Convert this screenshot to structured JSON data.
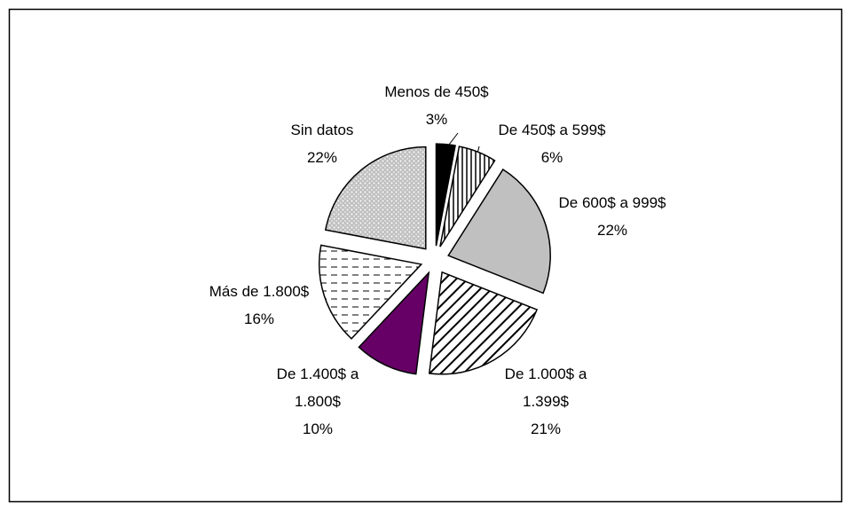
{
  "chart_data": {
    "type": "pie",
    "categories": [
      "Menos de 450$",
      "De 450$ a 599$",
      "De 600$ a 999$",
      "De 1.000$ a 1.399$",
      "De 1.400$ a 1.800$",
      "Más de 1.800$",
      "Sin datos"
    ],
    "values": [
      3,
      6,
      22,
      21,
      10,
      16,
      22
    ],
    "value_labels": [
      "3%",
      "6%",
      "22%",
      "21%",
      "10%",
      "16%",
      "22%"
    ],
    "colors": [
      "#000000",
      "#ffffff",
      "#c0c0c0",
      "#ffffff",
      "#660066",
      "#ffffff",
      "#c0c0c0"
    ]
  }
}
